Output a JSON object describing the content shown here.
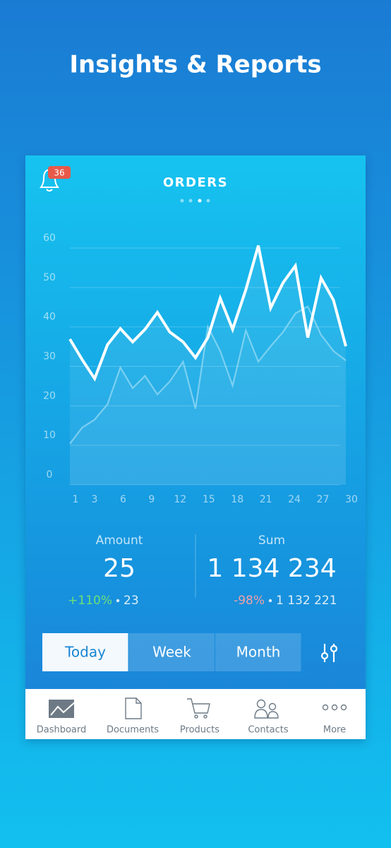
{
  "header": {
    "title": "Insights & Reports"
  },
  "notifications": {
    "count": 36
  },
  "chart_data": {
    "type": "line",
    "title": "ORDERS",
    "x": [
      1,
      2.3,
      3.6,
      4.95,
      6.3,
      7.6,
      8.9,
      10.2,
      11.5,
      12.9,
      14.2,
      15.5,
      16.8,
      18.1,
      19.5,
      20.8,
      22.1,
      23.4,
      24.7,
      26,
      27.4,
      28.7,
      30
    ],
    "series": [
      {
        "color": "#ffffff",
        "values": [
          34.4,
          29.2,
          24.4,
          33,
          37.1,
          33.7,
          36.9,
          41.2,
          36.2,
          33.7,
          29.7,
          34.8,
          44.8,
          36.9,
          47,
          58.1,
          42.3,
          48.7,
          53,
          34.8,
          49.9,
          44.3,
          32.6
        ]
      },
      {
        "color": "#a9e3f6",
        "values": [
          7.9,
          12,
          14,
          17.9,
          27.2,
          22,
          25.1,
          20.4,
          23.7,
          28.7,
          16.8,
          37.6,
          31.4,
          22.6,
          36.6,
          28.7,
          32.6,
          36.2,
          40.9,
          42.7,
          35.5,
          31.4,
          29
        ]
      }
    ],
    "xlim": [
      1,
      30
    ],
    "xticks": [
      1,
      3,
      6,
      9,
      12,
      15,
      18,
      21,
      24,
      27,
      30
    ],
    "ylim": [
      0,
      60
    ],
    "yticks": [
      0,
      10,
      20,
      30,
      40,
      50,
      60
    ],
    "grid": true
  },
  "stats": [
    {
      "label": "Amount",
      "value": 25,
      "change": "+110%",
      "previous": 23
    },
    {
      "label": "Sum",
      "value": "1 134 234",
      "change": "-98%",
      "previous": "1 132 221"
    }
  ],
  "periods": [
    "Today",
    "Week",
    "Month"
  ],
  "tabs": [
    "Dashboard",
    "Documents",
    "Products",
    "Contacts",
    "More"
  ]
}
